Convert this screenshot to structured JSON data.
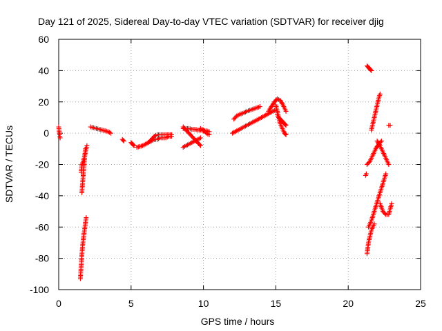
{
  "chart_data": {
    "type": "scatter",
    "title": "Day 121 of 2025, Sidereal Day-to-day VTEC variation (SDTVAR) for receiver djig",
    "xlabel": "GPS time / hours",
    "ylabel": "SDTVAR / TECUs",
    "xlim": [
      0,
      25
    ],
    "ylim": [
      -100,
      60
    ],
    "xticks": [
      0,
      5,
      10,
      15,
      20,
      25
    ],
    "yticks": [
      -100,
      -80,
      -60,
      -40,
      -20,
      0,
      20,
      40,
      60
    ],
    "grid": true,
    "marker": "+",
    "color": "#ff0000",
    "segments": [
      {
        "x": [
          0.0,
          0.05,
          0.1
        ],
        "y": [
          4,
          0,
          -3
        ]
      },
      {
        "x": [
          1.5,
          1.55,
          1.6,
          1.65,
          1.7,
          1.75,
          1.8,
          1.85,
          1.9
        ],
        "y": [
          -93,
          -85,
          -78,
          -72,
          -68,
          -64,
          -61,
          -57,
          -54
        ]
      },
      {
        "x": [
          1.6,
          1.65,
          1.7,
          1.75,
          1.8,
          1.85
        ],
        "y": [
          -38,
          -32,
          -26,
          -20,
          -15,
          -10
        ]
      },
      {
        "x": [
          1.55,
          1.6,
          1.7,
          1.8,
          1.9,
          1.95
        ],
        "y": [
          -25,
          -20,
          -18,
          -14,
          -10,
          -8
        ]
      },
      {
        "x": [
          2.2,
          2.4,
          2.6,
          2.8,
          3.0,
          3.2,
          3.4,
          3.6
        ],
        "y": [
          4,
          3.5,
          3,
          2.5,
          2,
          1.5,
          1,
          0
        ]
      },
      {
        "x": [
          4.4,
          4.5
        ],
        "y": [
          -4,
          -5
        ]
      },
      {
        "x": [
          5.0,
          5.1,
          5.2
        ],
        "y": [
          -6,
          -7,
          -8
        ]
      },
      {
        "x": [
          5.4,
          5.6,
          5.8,
          6.0,
          6.2,
          6.4,
          6.6,
          6.8,
          7.0,
          7.2,
          7.4,
          7.6,
          7.8
        ],
        "y": [
          -9,
          -8.5,
          -8,
          -7,
          -6,
          -5,
          -4,
          -4,
          -3,
          -3,
          -3,
          -2,
          -2
        ]
      },
      {
        "x": [
          6.2,
          6.4,
          6.6,
          6.8,
          7.0,
          7.2,
          7.4,
          7.6,
          7.8
        ],
        "y": [
          -6,
          -4,
          -2,
          -1,
          -1,
          -1,
          -1,
          -1,
          -1
        ]
      },
      {
        "x": [
          8.6,
          8.8,
          9.0,
          9.2,
          9.4,
          9.6,
          9.8
        ],
        "y": [
          -9,
          -8,
          -7,
          -6,
          -5,
          -4,
          -3
        ]
      },
      {
        "x": [
          8.6,
          8.8,
          9.0,
          9.2,
          9.4,
          9.6,
          9.8
        ],
        "y": [
          4,
          2,
          0,
          -2,
          -4,
          -6,
          -8
        ]
      },
      {
        "x": [
          8.6,
          8.8,
          9.0,
          9.2,
          9.4,
          9.6,
          9.8,
          10.0,
          10.2,
          10.4
        ],
        "y": [
          3,
          3,
          3,
          2.5,
          2.5,
          2,
          2,
          1.5,
          1.5,
          1
        ]
      },
      {
        "x": [
          9.8,
          10.0,
          10.2,
          10.4
        ],
        "y": [
          3,
          2,
          0,
          -1
        ]
      },
      {
        "x": [
          12.0,
          12.2,
          12.4,
          12.6,
          12.8,
          13.0,
          13.2,
          13.4,
          13.6,
          13.8,
          14.0,
          14.2,
          14.4,
          14.6,
          14.8,
          15.0
        ],
        "y": [
          0,
          1,
          2,
          3,
          4,
          5,
          6,
          7,
          8,
          9,
          10,
          11,
          12,
          13,
          14,
          15
        ]
      },
      {
        "x": [
          12.1,
          12.3,
          12.5,
          12.8,
          13.0,
          13.3,
          13.6,
          13.9
        ],
        "y": [
          9,
          11,
          12,
          13,
          14,
          15,
          16,
          17
        ]
      },
      {
        "x": [
          14.5,
          14.7,
          14.9,
          15.1,
          15.3,
          15.5,
          15.7
        ],
        "y": [
          14,
          17,
          20,
          22,
          21,
          18,
          14
        ]
      },
      {
        "x": [
          15.0,
          15.1,
          15.2,
          15.3,
          15.4,
          15.5,
          15.6,
          15.7
        ],
        "y": [
          18,
          14,
          10,
          6,
          4,
          2,
          0,
          -1
        ]
      },
      {
        "x": [
          15.1,
          15.2,
          15.3,
          15.4,
          15.5,
          15.6,
          15.7
        ],
        "y": [
          12,
          10,
          9,
          8,
          7,
          6,
          5
        ]
      },
      {
        "x": [
          21.3,
          21.4,
          21.5,
          21.6
        ],
        "y": [
          43,
          42,
          41,
          40
        ]
      },
      {
        "x": [
          21.3,
          21.4,
          21.5,
          21.6,
          21.7,
          21.8
        ],
        "y": [
          -77,
          -70,
          -66,
          -62,
          -60,
          -58
        ]
      },
      {
        "x": [
          21.4,
          21.6,
          21.8,
          22.0,
          22.2,
          22.4,
          22.6
        ],
        "y": [
          -60,
          -56,
          -50,
          -44,
          -38,
          -32,
          -26
        ]
      },
      {
        "x": [
          21.3,
          21.5,
          21.7,
          21.9,
          22.1,
          22.3
        ],
        "y": [
          -20,
          -18,
          -14,
          -10,
          -7,
          -5
        ]
      },
      {
        "x": [
          21.6,
          21.7,
          21.8,
          21.9,
          22.0,
          22.1,
          22.2
        ],
        "y": [
          2,
          6,
          10,
          14,
          18,
          22,
          25
        ]
      },
      {
        "x": [
          22.0,
          22.2,
          22.4,
          22.6,
          22.8
        ],
        "y": [
          -5,
          -8,
          -12,
          -16,
          -20
        ]
      },
      {
        "x": [
          22.2,
          22.4,
          22.6,
          22.8,
          23.0
        ],
        "y": [
          -45,
          -50,
          -52,
          -52,
          -45
        ]
      },
      {
        "x": [
          22.8,
          22.9
        ],
        "y": [
          5,
          5
        ]
      },
      {
        "x": [
          21.2,
          21.25
        ],
        "y": [
          -27,
          -26
        ]
      }
    ]
  }
}
